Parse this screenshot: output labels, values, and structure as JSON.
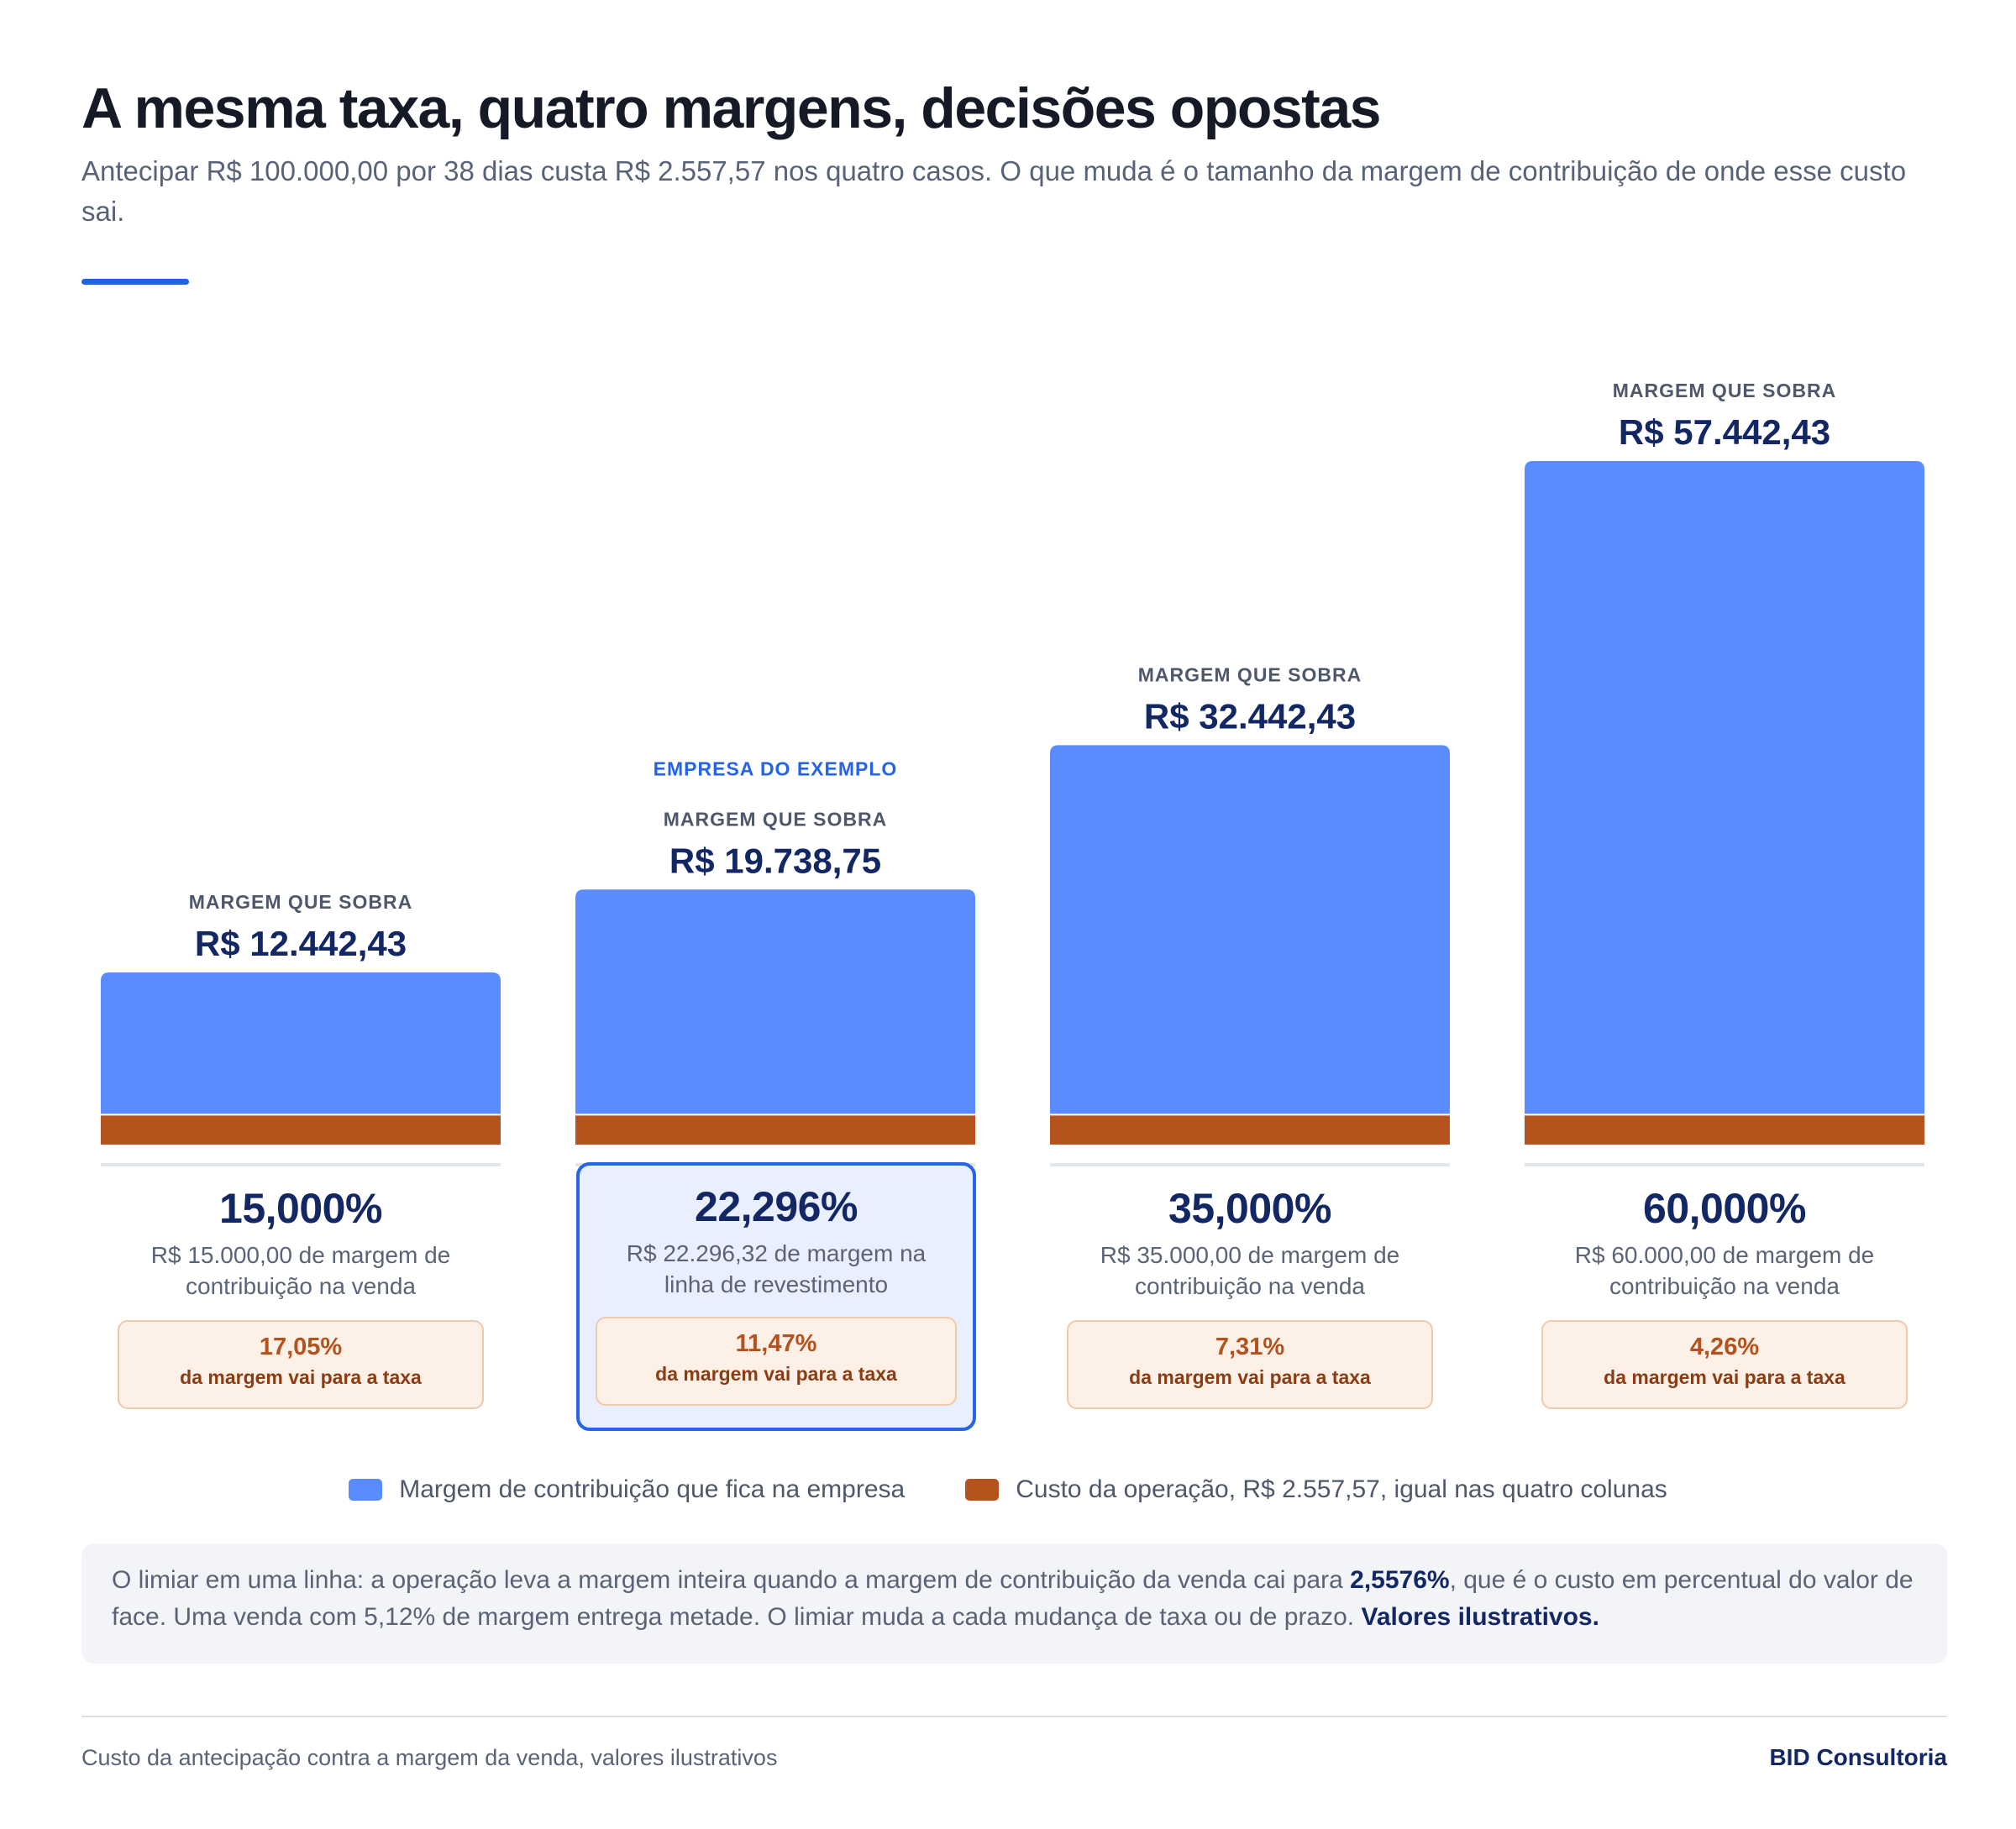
{
  "header": {
    "title": "A mesma taxa, quatro margens, decisões opostas",
    "subtitle": "Antecipar R$ 100.000,00 por 38 dias custa R$ 2.557,57 nos quatro casos. O que muda é o tamanho da margem de contribuição de onde esse custo sai."
  },
  "colors": {
    "accent": "#1f63e0",
    "margin_bar": "#5b8cff",
    "cost_bar": "#b5531d",
    "navy": "#132765",
    "highlight_border": "#2563eb"
  },
  "chart_data": {
    "type": "bar",
    "stacked": true,
    "categories": [
      "15,000%",
      "22,296%",
      "35,000%",
      "60,000%"
    ],
    "series": [
      {
        "name": "Margem de contribuição que fica na empresa",
        "values": [
          12442.43,
          19738.75,
          32442.43,
          57442.43
        ]
      },
      {
        "name": "Custo da operação, R$ 2.557,57, igual nas quatro colunas",
        "values": [
          2557.57,
          2557.57,
          2557.57,
          2557.57
        ]
      }
    ],
    "bar_caption": "MARGEM QUE SOBRA",
    "value_labels": [
      "R$ 12.442,43",
      "R$ 19.738,75",
      "R$ 32.442,43",
      "R$ 57.442,43"
    ],
    "highlight": {
      "index": 1,
      "label": "EMPRESA DO EXEMPLO"
    },
    "ylim": [
      0,
      60000
    ],
    "grid": false,
    "legend_position": "bottom"
  },
  "columns": [
    {
      "pct": "15,000%",
      "desc": "R$ 15.000,00 de margem de contribuição na venda",
      "tax_pct": "17,05%",
      "tax_label": "da margem vai para a taxa",
      "highlight": false
    },
    {
      "pct": "22,296%",
      "desc": "R$ 22.296,32 de margem na linha de revestimento",
      "tax_pct": "11,47%",
      "tax_label": "da margem vai para a taxa",
      "highlight": true
    },
    {
      "pct": "35,000%",
      "desc": "R$ 35.000,00 de margem de contribuição na venda",
      "tax_pct": "7,31%",
      "tax_label": "da margem vai para a taxa",
      "highlight": false
    },
    {
      "pct": "60,000%",
      "desc": "R$ 60.000,00 de margem de contribuição na venda",
      "tax_pct": "4,26%",
      "tax_label": "da margem vai para a taxa",
      "highlight": false
    }
  ],
  "legend": {
    "margin": "Margem de contribuição que fica na empresa",
    "cost": "Custo da operação, R$ 2.557,57, igual nas quatro colunas"
  },
  "note": {
    "before": "O limiar em uma linha: a operação leva a margem inteira quando a margem de contribuição da venda cai para ",
    "threshold": "2,5576%",
    "after": ", que é o custo em percentual do valor de face. Uma venda com 5,12% de margem entrega metade. O limiar muda a cada mudança de taxa ou de prazo. ",
    "emphasis": "Valores ilustrativos."
  },
  "footer": {
    "caption": "Custo da antecipação contra a margem da venda, valores ilustrativos",
    "brand": "BID Consultoria"
  }
}
